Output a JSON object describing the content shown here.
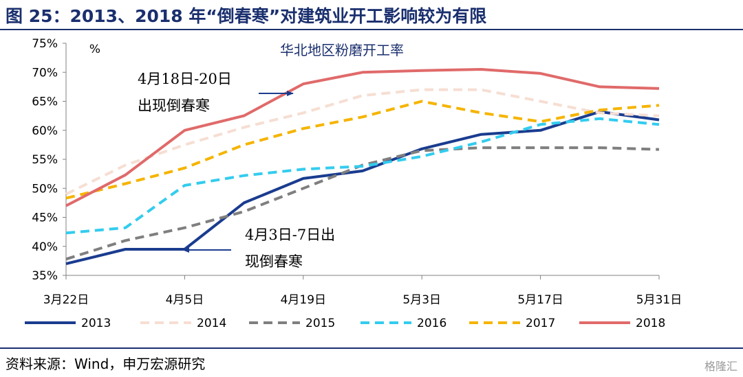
{
  "header": {
    "title": "图 25：2013、2018 年“倒春寒”对建筑业开工影响较为有限"
  },
  "footer": {
    "source": "资料来源：Wind，申万宏源研究",
    "watermark": "格隆汇"
  },
  "chart_data": {
    "type": "line",
    "title": "华北地区粉磨开工率",
    "ylabel": "%",
    "ylim": [
      35,
      75
    ],
    "yticks": [
      "35%",
      "40%",
      "45%",
      "50%",
      "55%",
      "60%",
      "65%",
      "70%",
      "75%"
    ],
    "xticks": [
      "3月22日",
      "4月5日",
      "4月19日",
      "5月3日",
      "5月17日",
      "5月31日"
    ],
    "x": [
      "3月22日",
      "3月29日",
      "4月5日",
      "4月12日",
      "4月19日",
      "4月26日",
      "5月3日",
      "5月10日",
      "5月17日",
      "5月24日",
      "5月31日"
    ],
    "legend_position": "bottom",
    "series": [
      {
        "name": "2013",
        "color": "#1a3c8f",
        "dash": "solid",
        "values": [
          37.0,
          39.5,
          39.5,
          47.5,
          51.7,
          53.0,
          56.8,
          59.3,
          60.0,
          63.2,
          61.8
        ]
      },
      {
        "name": "2014",
        "color": "#f6ded3",
        "dash": "dashed",
        "values": [
          49.0,
          54.0,
          57.5,
          60.5,
          63.0,
          66.0,
          67.0,
          67.0,
          65.0,
          63.0,
          62.5
        ]
      },
      {
        "name": "2015",
        "color": "#7f7f7f",
        "dash": "dashed",
        "values": [
          37.8,
          41.0,
          43.2,
          46.0,
          50.0,
          54.0,
          56.5,
          57.0,
          57.0,
          57.0,
          56.7
        ]
      },
      {
        "name": "2016",
        "color": "#33ccee",
        "dash": "dashed",
        "values": [
          42.3,
          43.2,
          50.5,
          52.2,
          53.3,
          53.8,
          55.5,
          58.0,
          61.0,
          62.0,
          61.0
        ]
      },
      {
        "name": "2017",
        "color": "#f5b400",
        "dash": "dashed",
        "values": [
          48.3,
          50.8,
          53.5,
          57.5,
          60.3,
          62.3,
          65.0,
          63.0,
          61.5,
          63.5,
          64.3
        ]
      },
      {
        "name": "2018",
        "color": "#e06a6a",
        "dash": "solid",
        "values": [
          47.0,
          52.3,
          60.0,
          62.5,
          68.0,
          70.0,
          70.3,
          70.5,
          69.8,
          67.5,
          67.2
        ]
      }
    ],
    "annotations": [
      {
        "text_lines": [
          "4月18日-20日",
          "出现倒春寒"
        ]
      },
      {
        "text_lines": [
          "4月3日-7日出",
          "现倒春寒"
        ]
      }
    ]
  }
}
